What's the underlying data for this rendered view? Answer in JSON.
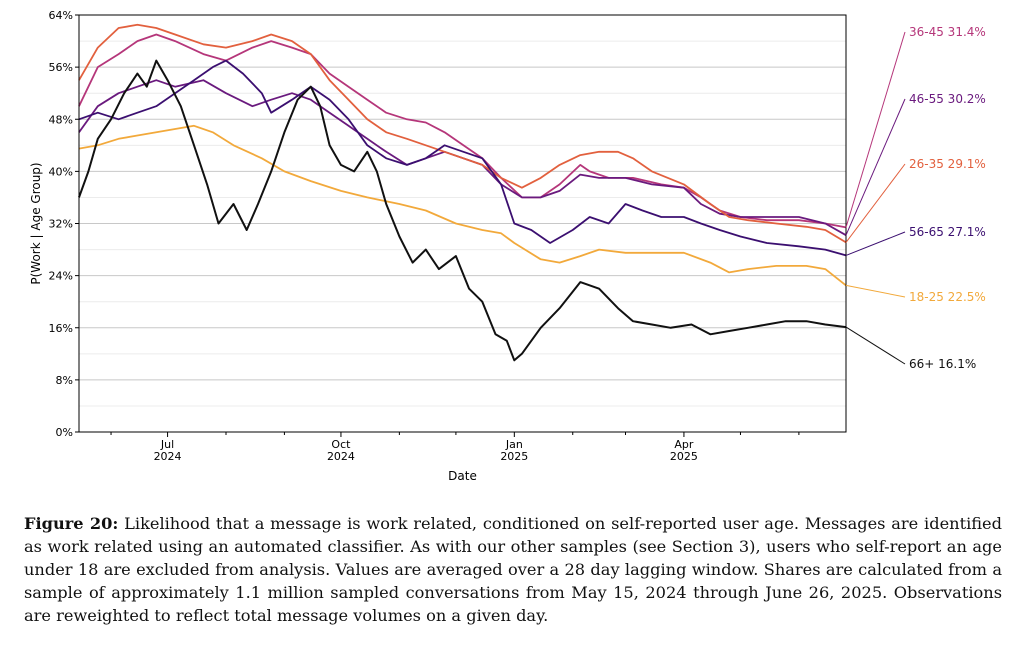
{
  "caption": {
    "label": "Figure 20:",
    "text": "Likelihood that a message is work related, conditioned on self-reported user age. Messages are identified as work related using an automated classifier. As with our other samples (see Section 3), users who self-report an age under 18 are excluded from analysis. Values are averaged over a 28 day lagging window. Shares are calculated from a sample of approximately 1.1 million sampled conversations from May 15, 2024 through June 26, 2025. Observations are reweighted to reflect total message volumes on a given day."
  },
  "chart_data": {
    "type": "line",
    "xlabel": "Date",
    "ylabel": "P(Work | Age Group)",
    "xlim": [
      "2024-05-15",
      "2025-06-26"
    ],
    "ylim": [
      0,
      64
    ],
    "yticks": [
      "0%",
      "8%",
      "16%",
      "24%",
      "32%",
      "40%",
      "48%",
      "56%",
      "64%"
    ],
    "ytick_values": [
      0,
      8,
      16,
      24,
      32,
      40,
      48,
      56,
      64
    ],
    "xticks": [
      {
        "date": "2024-07-01",
        "label1": "Jul",
        "label2": "2024"
      },
      {
        "date": "2024-10-01",
        "label1": "Oct",
        "label2": "2024"
      },
      {
        "date": "2025-01-01",
        "label1": "Jan",
        "label2": "2025"
      },
      {
        "date": "2025-04-01",
        "label1": "Apr",
        "label2": "2025"
      }
    ],
    "minor_tick_dates": [
      "2024-06-01",
      "2024-08-01",
      "2024-09-01",
      "2024-11-01",
      "2024-12-01",
      "2025-02-01",
      "2025-03-01",
      "2025-05-01",
      "2025-06-01"
    ],
    "grid": "horizontal",
    "legend": "end-labels-right",
    "series": [
      {
        "name": "36-45",
        "end_label": "31.4%",
        "color": "#b5367a",
        "points": [
          [
            "2024-05-15",
            50
          ],
          [
            "2024-05-25",
            56
          ],
          [
            "2024-06-05",
            58
          ],
          [
            "2024-06-15",
            60
          ],
          [
            "2024-06-25",
            61
          ],
          [
            "2024-07-05",
            60
          ],
          [
            "2024-07-20",
            58
          ],
          [
            "2024-08-01",
            57
          ],
          [
            "2024-08-15",
            59
          ],
          [
            "2024-08-25",
            60
          ],
          [
            "2024-09-05",
            59
          ],
          [
            "2024-09-15",
            58
          ],
          [
            "2024-09-25",
            55
          ],
          [
            "2024-10-05",
            53
          ],
          [
            "2024-10-15",
            51
          ],
          [
            "2024-10-25",
            49
          ],
          [
            "2024-11-05",
            48
          ],
          [
            "2024-11-15",
            47.5
          ],
          [
            "2024-11-25",
            46
          ],
          [
            "2024-12-05",
            44
          ],
          [
            "2024-12-15",
            42
          ],
          [
            "2024-12-25",
            39
          ],
          [
            "2025-01-05",
            36
          ],
          [
            "2025-01-15",
            36
          ],
          [
            "2025-01-25",
            38
          ],
          [
            "2025-02-05",
            41
          ],
          [
            "2025-02-10",
            40
          ],
          [
            "2025-02-20",
            39
          ],
          [
            "2025-03-05",
            39
          ],
          [
            "2025-03-20",
            38
          ],
          [
            "2025-04-01",
            37.5
          ],
          [
            "2025-04-10",
            36
          ],
          [
            "2025-04-20",
            34
          ],
          [
            "2025-05-01",
            33
          ],
          [
            "2025-05-15",
            32.5
          ],
          [
            "2025-06-01",
            32.5
          ],
          [
            "2025-06-15",
            32
          ],
          [
            "2025-06-26",
            31.4
          ]
        ]
      },
      {
        "name": "46-55",
        "end_label": "30.2%",
        "color": "#6a1a7e",
        "points": [
          [
            "2024-05-15",
            46
          ],
          [
            "2024-05-25",
            50
          ],
          [
            "2024-06-05",
            52
          ],
          [
            "2024-06-15",
            53
          ],
          [
            "2024-06-25",
            54
          ],
          [
            "2024-07-05",
            53
          ],
          [
            "2024-07-20",
            54
          ],
          [
            "2024-08-01",
            52
          ],
          [
            "2024-08-15",
            50
          ],
          [
            "2024-08-25",
            51
          ],
          [
            "2024-09-05",
            52
          ],
          [
            "2024-09-15",
            51
          ],
          [
            "2024-09-25",
            49
          ],
          [
            "2024-10-05",
            47
          ],
          [
            "2024-10-15",
            45
          ],
          [
            "2024-10-25",
            43
          ],
          [
            "2024-11-05",
            41
          ],
          [
            "2024-11-15",
            42
          ],
          [
            "2024-11-25",
            43
          ],
          [
            "2024-12-05",
            42
          ],
          [
            "2024-12-15",
            41
          ],
          [
            "2024-12-25",
            38
          ],
          [
            "2025-01-05",
            36
          ],
          [
            "2025-01-15",
            36
          ],
          [
            "2025-01-25",
            37
          ],
          [
            "2025-02-05",
            39.5
          ],
          [
            "2025-02-15",
            39
          ],
          [
            "2025-03-01",
            39
          ],
          [
            "2025-03-15",
            38
          ],
          [
            "2025-04-01",
            37.5
          ],
          [
            "2025-04-10",
            35
          ],
          [
            "2025-04-20",
            33.5
          ],
          [
            "2025-05-01",
            33
          ],
          [
            "2025-05-15",
            33
          ],
          [
            "2025-06-01",
            33
          ],
          [
            "2025-06-15",
            32
          ],
          [
            "2025-06-26",
            30.2
          ]
        ]
      },
      {
        "name": "26-35",
        "end_label": "29.1%",
        "color": "#e2603e",
        "points": [
          [
            "2024-05-15",
            54
          ],
          [
            "2024-05-25",
            59
          ],
          [
            "2024-06-05",
            62
          ],
          [
            "2024-06-15",
            62.5
          ],
          [
            "2024-06-25",
            62
          ],
          [
            "2024-07-05",
            61
          ],
          [
            "2024-07-20",
            59.5
          ],
          [
            "2024-08-01",
            59
          ],
          [
            "2024-08-15",
            60
          ],
          [
            "2024-08-25",
            61
          ],
          [
            "2024-09-05",
            60
          ],
          [
            "2024-09-15",
            58
          ],
          [
            "2024-09-25",
            54
          ],
          [
            "2024-10-05",
            51
          ],
          [
            "2024-10-15",
            48
          ],
          [
            "2024-10-25",
            46
          ],
          [
            "2024-11-05",
            45
          ],
          [
            "2024-11-15",
            44
          ],
          [
            "2024-11-25",
            43
          ],
          [
            "2024-12-05",
            42
          ],
          [
            "2024-12-15",
            41
          ],
          [
            "2024-12-25",
            39
          ],
          [
            "2025-01-05",
            37.5
          ],
          [
            "2025-01-15",
            39
          ],
          [
            "2025-01-25",
            41
          ],
          [
            "2025-02-05",
            42.5
          ],
          [
            "2025-02-15",
            43
          ],
          [
            "2025-02-25",
            43
          ],
          [
            "2025-03-05",
            42
          ],
          [
            "2025-03-15",
            40
          ],
          [
            "2025-04-01",
            38
          ],
          [
            "2025-04-15",
            35
          ],
          [
            "2025-04-25",
            33
          ],
          [
            "2025-05-05",
            32.5
          ],
          [
            "2025-05-20",
            32
          ],
          [
            "2025-06-05",
            31.5
          ],
          [
            "2025-06-15",
            31
          ],
          [
            "2025-06-26",
            29.1
          ]
        ]
      },
      {
        "name": "56-65",
        "end_label": "27.1%",
        "color": "#3b0f70",
        "points": [
          [
            "2024-05-15",
            48
          ],
          [
            "2024-05-25",
            49
          ],
          [
            "2024-06-05",
            48
          ],
          [
            "2024-06-15",
            49
          ],
          [
            "2024-06-25",
            50
          ],
          [
            "2024-07-05",
            52
          ],
          [
            "2024-07-15",
            54
          ],
          [
            "2024-07-25",
            56
          ],
          [
            "2024-08-01",
            57
          ],
          [
            "2024-08-10",
            55
          ],
          [
            "2024-08-20",
            52
          ],
          [
            "2024-08-25",
            49
          ],
          [
            "2024-09-05",
            51
          ],
          [
            "2024-09-15",
            53
          ],
          [
            "2024-09-25",
            51
          ],
          [
            "2024-10-05",
            48
          ],
          [
            "2024-10-15",
            44
          ],
          [
            "2024-10-25",
            42
          ],
          [
            "2024-11-05",
            41
          ],
          [
            "2024-11-15",
            42
          ],
          [
            "2024-11-25",
            44
          ],
          [
            "2024-12-05",
            43
          ],
          [
            "2024-12-15",
            42
          ],
          [
            "2024-12-25",
            38
          ],
          [
            "2025-01-01",
            32
          ],
          [
            "2025-01-10",
            31
          ],
          [
            "2025-01-20",
            29
          ],
          [
            "2025-02-01",
            31
          ],
          [
            "2025-02-10",
            33
          ],
          [
            "2025-02-20",
            32
          ],
          [
            "2025-03-01",
            35
          ],
          [
            "2025-03-10",
            34
          ],
          [
            "2025-03-20",
            33
          ],
          [
            "2025-04-01",
            33
          ],
          [
            "2025-04-10",
            32
          ],
          [
            "2025-04-20",
            31
          ],
          [
            "2025-05-01",
            30
          ],
          [
            "2025-05-15",
            29
          ],
          [
            "2025-06-01",
            28.5
          ],
          [
            "2025-06-15",
            28
          ],
          [
            "2025-06-26",
            27.1
          ]
        ]
      },
      {
        "name": "18-25",
        "end_label": "22.5%",
        "color": "#f2a93b",
        "points": [
          [
            "2024-05-15",
            43.5
          ],
          [
            "2024-05-25",
            44
          ],
          [
            "2024-06-05",
            45
          ],
          [
            "2024-06-15",
            45.5
          ],
          [
            "2024-06-25",
            46
          ],
          [
            "2024-07-05",
            46.5
          ],
          [
            "2024-07-15",
            47
          ],
          [
            "2024-07-25",
            46
          ],
          [
            "2024-08-05",
            44
          ],
          [
            "2024-08-20",
            42
          ],
          [
            "2024-09-01",
            40
          ],
          [
            "2024-09-15",
            38.5
          ],
          [
            "2024-10-01",
            37
          ],
          [
            "2024-10-15",
            36
          ],
          [
            "2024-11-01",
            35
          ],
          [
            "2024-11-15",
            34
          ],
          [
            "2024-12-01",
            32
          ],
          [
            "2024-12-15",
            31
          ],
          [
            "2024-12-25",
            30.5
          ],
          [
            "2025-01-01",
            29
          ],
          [
            "2025-01-15",
            26.5
          ],
          [
            "2025-01-25",
            26
          ],
          [
            "2025-02-05",
            27
          ],
          [
            "2025-02-15",
            28
          ],
          [
            "2025-03-01",
            27.5
          ],
          [
            "2025-03-15",
            27.5
          ],
          [
            "2025-04-01",
            27.5
          ],
          [
            "2025-04-15",
            26
          ],
          [
            "2025-04-25",
            24.5
          ],
          [
            "2025-05-05",
            25
          ],
          [
            "2025-05-20",
            25.5
          ],
          [
            "2025-06-05",
            25.5
          ],
          [
            "2025-06-15",
            25
          ],
          [
            "2025-06-26",
            22.5
          ]
        ]
      },
      {
        "name": "66+",
        "end_label": "16.1%",
        "color": "#111111",
        "points": [
          [
            "2024-05-15",
            36
          ],
          [
            "2024-05-20",
            40
          ],
          [
            "2024-05-25",
            45
          ],
          [
            "2024-06-01",
            48
          ],
          [
            "2024-06-08",
            52
          ],
          [
            "2024-06-15",
            55
          ],
          [
            "2024-06-20",
            53
          ],
          [
            "2024-06-25",
            57
          ],
          [
            "2024-07-01",
            54
          ],
          [
            "2024-07-08",
            50
          ],
          [
            "2024-07-15",
            44
          ],
          [
            "2024-07-22",
            38
          ],
          [
            "2024-07-28",
            32
          ],
          [
            "2024-08-05",
            35
          ],
          [
            "2024-08-12",
            31
          ],
          [
            "2024-08-18",
            35
          ],
          [
            "2024-08-25",
            40
          ],
          [
            "2024-09-01",
            46
          ],
          [
            "2024-09-08",
            51
          ],
          [
            "2024-09-15",
            53
          ],
          [
            "2024-09-20",
            50
          ],
          [
            "2024-09-25",
            44
          ],
          [
            "2024-10-01",
            41
          ],
          [
            "2024-10-08",
            40
          ],
          [
            "2024-10-15",
            43
          ],
          [
            "2024-10-20",
            40
          ],
          [
            "2024-10-25",
            35
          ],
          [
            "2024-11-01",
            30
          ],
          [
            "2024-11-08",
            26
          ],
          [
            "2024-11-15",
            28
          ],
          [
            "2024-11-22",
            25
          ],
          [
            "2024-12-01",
            27
          ],
          [
            "2024-12-08",
            22
          ],
          [
            "2024-12-15",
            20
          ],
          [
            "2024-12-22",
            15
          ],
          [
            "2024-12-28",
            14
          ],
          [
            "2025-01-01",
            11
          ],
          [
            "2025-01-05",
            12
          ],
          [
            "2025-01-15",
            16
          ],
          [
            "2025-01-25",
            19
          ],
          [
            "2025-02-05",
            23
          ],
          [
            "2025-02-15",
            22
          ],
          [
            "2025-02-25",
            19
          ],
          [
            "2025-03-05",
            17
          ],
          [
            "2025-03-15",
            16.5
          ],
          [
            "2025-03-25",
            16
          ],
          [
            "2025-04-05",
            16.5
          ],
          [
            "2025-04-15",
            15
          ],
          [
            "2025-04-25",
            15.5
          ],
          [
            "2025-05-05",
            16
          ],
          [
            "2025-05-15",
            16.5
          ],
          [
            "2025-05-25",
            17
          ],
          [
            "2025-06-05",
            17
          ],
          [
            "2025-06-15",
            16.5
          ],
          [
            "2025-06-26",
            16.1
          ]
        ]
      }
    ]
  }
}
